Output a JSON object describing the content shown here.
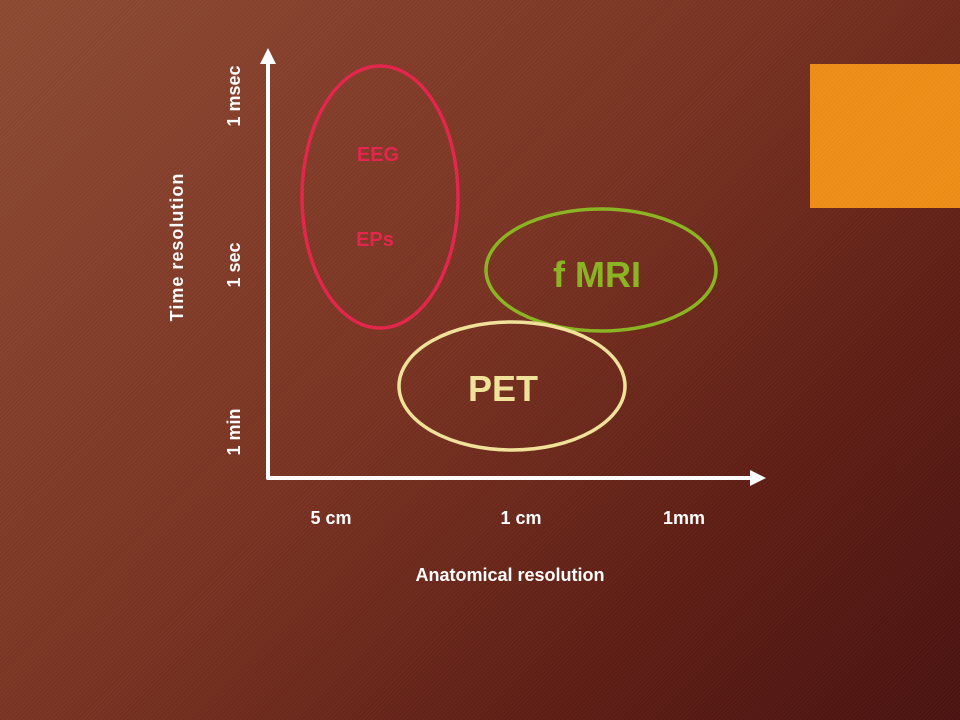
{
  "colors": {
    "axis": "#ffffff",
    "eeg": "#e5244a",
    "fmri": "#8bb521",
    "pet": "#f2e39a",
    "accent": "#ee8e16",
    "text": "#ffffff"
  },
  "axes": {
    "x_title": "Anatomical resolution",
    "y_title": "Time resolution",
    "x_ticks": [
      "5 cm",
      "1 cm",
      "1mm"
    ],
    "y_ticks": [
      "1 msec",
      "1 sec",
      "1 min"
    ]
  },
  "regions": {
    "eeg": {
      "line1": "EEG",
      "line2": "EPs"
    },
    "fmri": {
      "label": "f MRI"
    },
    "pet": {
      "label": "PET"
    }
  }
}
